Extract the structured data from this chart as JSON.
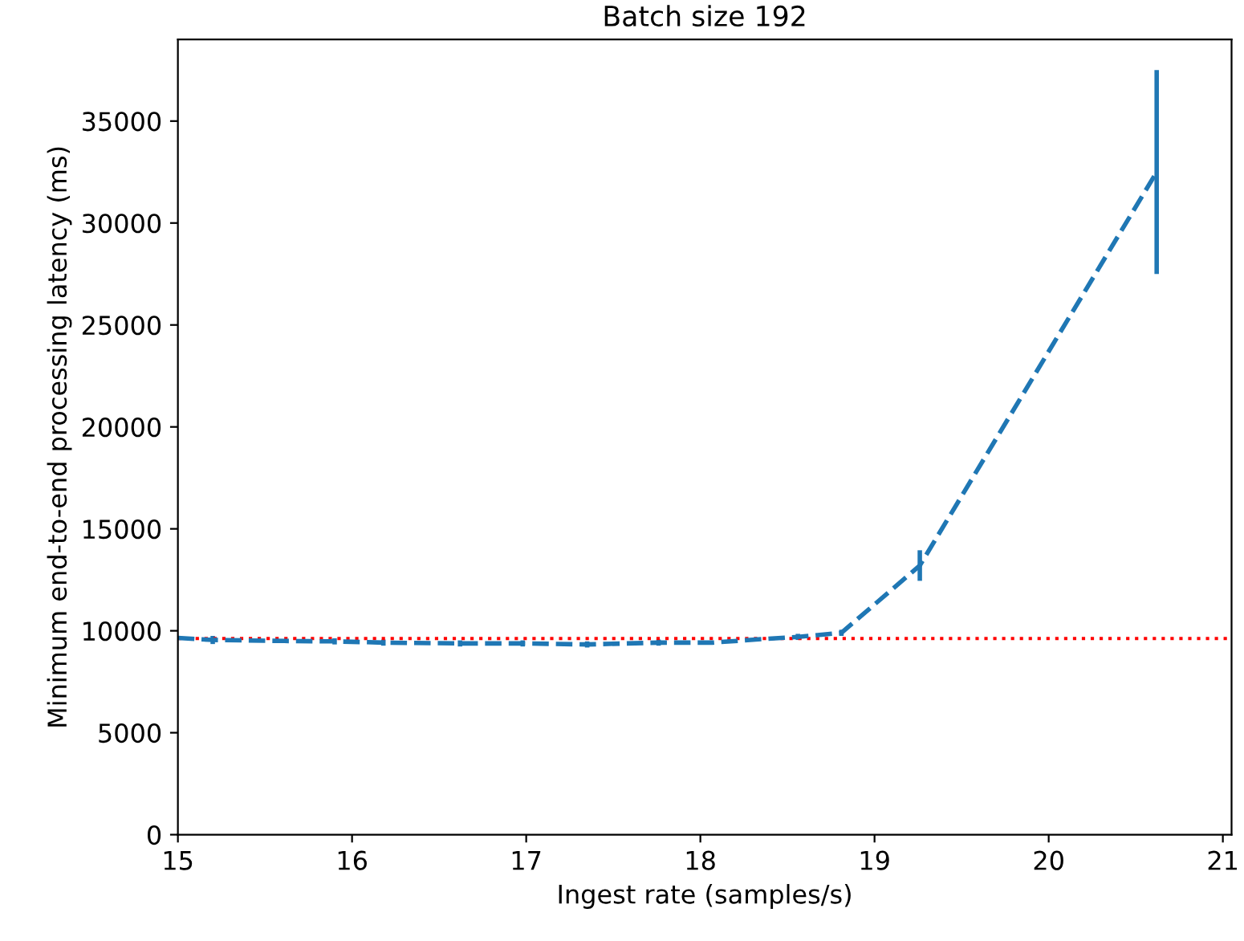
{
  "chart_data": {
    "type": "line",
    "title": "Batch size 192",
    "xlabel": "Ingest rate (samples/s)",
    "ylabel": "Minimum end-to-end processing latency (ms)",
    "x": [
      15.0,
      15.2,
      15.61,
      15.9,
      16.18,
      16.62,
      16.98,
      17.35,
      17.76,
      18.07,
      18.37,
      18.56,
      18.81,
      19.26,
      20.62
    ],
    "series": [
      {
        "color": "#1f77b4",
        "values": [
          9650,
          9550,
          9500,
          9480,
          9420,
          9380,
          9380,
          9330,
          9420,
          9420,
          9600,
          9700,
          9900,
          13200,
          32500
        ],
        "errors": [
          null,
          200,
          null,
          150,
          150,
          150,
          150,
          150,
          150,
          null,
          null,
          150,
          150,
          750,
          5000
        ]
      }
    ],
    "line_style": "dashed",
    "marker": "none",
    "xlim": [
      15,
      21.05
    ],
    "xticks": [
      15,
      16,
      17,
      18,
      19,
      20,
      21
    ],
    "ylim": [
      0,
      39000
    ],
    "yticks": [
      0,
      5000,
      10000,
      15000,
      20000,
      25000,
      30000,
      35000
    ],
    "ref_lines": [
      {
        "axis": "y",
        "value": 9620,
        "color": "#ff0000",
        "line_style": "dotted"
      }
    ],
    "grid": false,
    "legend": false
  }
}
